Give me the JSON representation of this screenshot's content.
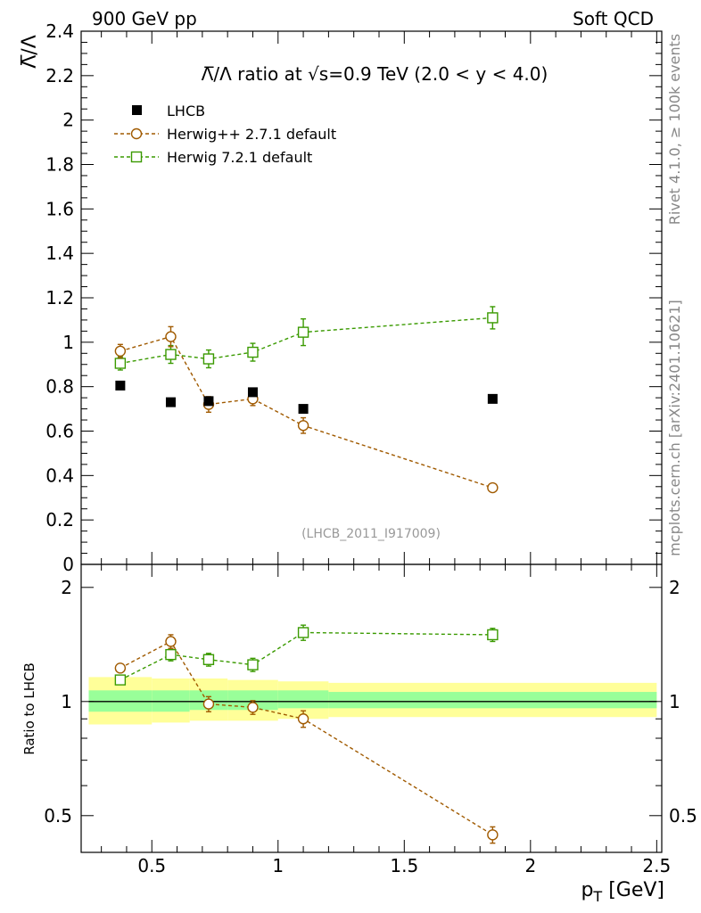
{
  "header": {
    "left": "900 GeV pp",
    "right": "Soft QCD",
    "side_top": "Rivet 4.1.0, ≥ 100k events",
    "side_bottom": "mcplots.cern.ch [arXiv:2401.10621]",
    "watermark": "(LHCB_2011_I917009)"
  },
  "colors": {
    "data": "#000000",
    "herwigpp": "#a05a00",
    "herwig7": "#3a9a00",
    "band_outer": "#ffff99",
    "band_inner": "#99ff99"
  },
  "chart_data": [
    {
      "type": "scatter",
      "panel": "main",
      "title": "Λ̅/Λ ratio at √s=0.9 TeV (2.0 < y < 4.0)",
      "ylabel": "Λ̅/Λ",
      "xlabel": "p_T [GeV]",
      "xlim": [
        0.22,
        2.52
      ],
      "ylim": [
        0,
        2.4
      ],
      "yticks": [
        "0",
        "0.2",
        "0.4",
        "0.6",
        "0.8",
        "1",
        "1.2",
        "1.4",
        "1.6",
        "1.8",
        "2",
        "2.2",
        "2.4"
      ],
      "series": [
        {
          "name": "LHCB",
          "style": "data",
          "x": [
            0.375,
            0.575,
            0.725,
            0.9,
            1.1,
            1.85
          ],
          "y": [
            0.805,
            0.73,
            0.735,
            0.775,
            0.7,
            0.745
          ],
          "err": [
            0,
            0,
            0,
            0,
            0,
            0
          ]
        },
        {
          "name": "Herwig++ 2.7.1 default",
          "style": "circle",
          "x": [
            0.375,
            0.575,
            0.725,
            0.9,
            1.1,
            1.85
          ],
          "y": [
            0.96,
            1.025,
            0.72,
            0.745,
            0.625,
            0.345
          ],
          "err": [
            0.03,
            0.045,
            0.035,
            0.03,
            0.035,
            0.015
          ]
        },
        {
          "name": "Herwig 7.2.1 default",
          "style": "square",
          "x": [
            0.375,
            0.575,
            0.725,
            0.9,
            1.1,
            1.85
          ],
          "y": [
            0.905,
            0.945,
            0.925,
            0.955,
            1.045,
            1.11
          ],
          "err": [
            0.03,
            0.04,
            0.04,
            0.04,
            0.06,
            0.05
          ]
        }
      ]
    },
    {
      "type": "scatter",
      "panel": "ratio",
      "ylabel": "Ratio to LHCB",
      "xlabel": "p_T [GeV]",
      "xlim": [
        0.22,
        2.52
      ],
      "ylim": [
        0.4,
        2.3
      ],
      "yscale": "log",
      "xticks": [
        "0.5",
        "1",
        "1.5",
        "2",
        "2.5"
      ],
      "yticks": [
        "0.5",
        "1",
        "2"
      ],
      "band": {
        "edges": [
          0.25,
          0.5,
          0.65,
          0.8,
          1.0,
          1.2,
          2.5
        ],
        "outer_lo": [
          0.87,
          0.88,
          0.89,
          0.89,
          0.9,
          0.91
        ],
        "outer_hi": [
          1.16,
          1.15,
          1.15,
          1.14,
          1.13,
          1.12
        ],
        "inner_lo": [
          0.94,
          0.94,
          0.95,
          0.95,
          0.96,
          0.96
        ],
        "inner_hi": [
          1.07,
          1.07,
          1.07,
          1.07,
          1.07,
          1.06
        ]
      },
      "series": [
        {
          "name": "Herwig++ 2.7.1 default",
          "style": "circle",
          "x": [
            0.375,
            0.575,
            0.725,
            0.9,
            1.1,
            1.85
          ],
          "y": [
            1.225,
            1.44,
            0.985,
            0.965,
            0.9,
            0.445
          ],
          "err": [
            0.025,
            0.06,
            0.045,
            0.04,
            0.045,
            0.022
          ]
        },
        {
          "name": "Herwig 7.2.1 default",
          "style": "square",
          "x": [
            0.375,
            0.575,
            0.725,
            0.9,
            1.1,
            1.85
          ],
          "y": [
            1.14,
            1.33,
            1.29,
            1.25,
            1.52,
            1.5
          ],
          "err": [
            0.025,
            0.05,
            0.05,
            0.05,
            0.07,
            0.06
          ]
        }
      ]
    }
  ]
}
